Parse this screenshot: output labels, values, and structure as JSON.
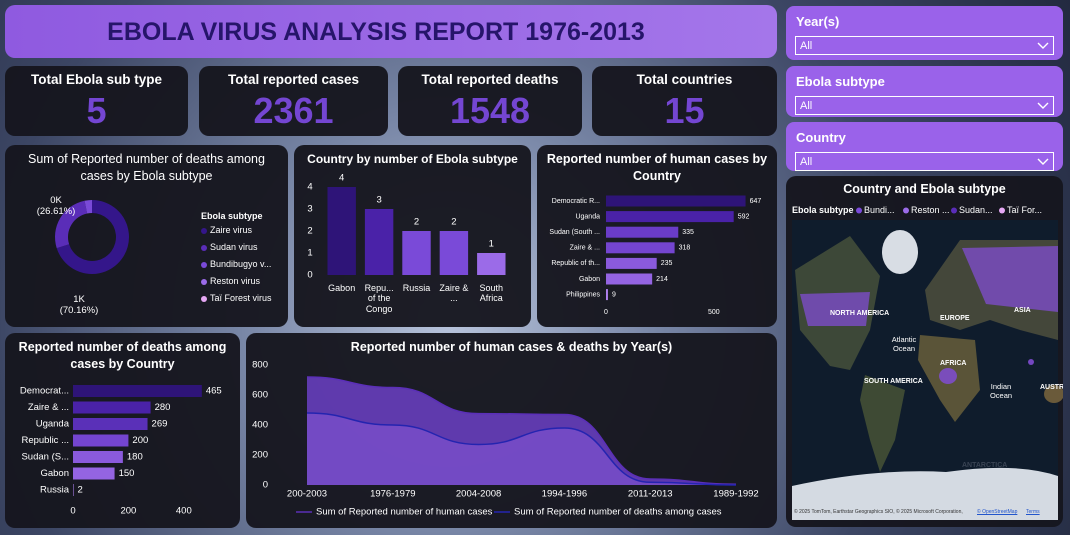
{
  "title": "EBOLA VIRUS ANALYSIS REPORT 1976-2013",
  "kpis": [
    {
      "label": "Total Ebola sub type",
      "value": 5
    },
    {
      "label": "Total reported cases",
      "value": 2361
    },
    {
      "label": "Total reported deaths",
      "value": 1548
    },
    {
      "label": "Total countries",
      "value": 15
    }
  ],
  "filters": [
    {
      "label": "Year(s)",
      "value": "All"
    },
    {
      "label": "Ebola subtype",
      "value": "All"
    },
    {
      "label": "Country",
      "value": "All"
    }
  ],
  "chart_data": [
    {
      "type": "donut",
      "title": "Sum of Reported number of deaths among cases by Ebola subtype",
      "legend_title": "Ebola subtype",
      "categories": [
        "Zaire virus",
        "Sudan virus",
        "Bundibugyo v...",
        "Reston virus",
        "Taï Forest virus"
      ],
      "values": [
        1086,
        412,
        50,
        0,
        0
      ],
      "value_labels": [
        "1K (70.16%)",
        "0K (26.61%)",
        null,
        null,
        null
      ],
      "colors": [
        "#34168a",
        "#5a2db8",
        "#7a4ad8",
        "#9b6be8",
        "#e6a8f4"
      ]
    },
    {
      "type": "column",
      "title": "Country by number of Ebola subtype",
      "categories": [
        "Gabon",
        "Repu... of the Congo",
        "Russia",
        "Zaire & ...",
        "South Africa"
      ],
      "values": [
        4,
        3,
        2,
        2,
        1
      ],
      "colors": [
        "#2e1478",
        "#4a22a8",
        "#7a4ad8",
        "#7a4ad8",
        "#9b6be8"
      ],
      "ylim": [
        0,
        4
      ],
      "yticks": [
        0,
        1,
        2,
        3,
        4
      ]
    },
    {
      "type": "hbar",
      "title": "Reported number of human cases by Country",
      "categories": [
        "Democratic R...",
        "Uganda",
        "Sudan (South ...",
        "Zaire & ...",
        "Republic of th...",
        "Gabon",
        "Philippines"
      ],
      "values": [
        647,
        592,
        335,
        318,
        235,
        214,
        9
      ],
      "colors": [
        "#2e1478",
        "#4a22a8",
        "#6a3cc8",
        "#7445d0",
        "#8a5adc",
        "#9464e2",
        "#b080f0"
      ],
      "xlim": [
        0,
        700
      ],
      "xticks": [
        0,
        500
      ]
    },
    {
      "type": "hbar",
      "title": "Reported number of deaths among cases by Country",
      "categories": [
        "Democrat...",
        "Zaire & ...",
        "Uganda",
        "Republic ...",
        "Sudan (S...",
        "Gabon",
        "Russia"
      ],
      "values": [
        465,
        280,
        269,
        200,
        180,
        150,
        2
      ],
      "colors": [
        "#2e1478",
        "#4a22a8",
        "#5a30b8",
        "#7445d0",
        "#8a5adc",
        "#9464e2",
        "#b080f0"
      ],
      "xlim": [
        0,
        480
      ],
      "xticks": [
        0,
        200,
        400
      ]
    },
    {
      "type": "area",
      "title": "Reported number of human cases & deaths by Year(s)",
      "categories": [
        "200-2003",
        "1976-1979",
        "2004-2008",
        "1994-1996",
        "2011-2013",
        "1989-1992"
      ],
      "series": [
        {
          "name": "Sum of Reported number of human cases",
          "color": "#5b2fb8",
          "values": [
            720,
            650,
            476,
            470,
            40,
            5
          ]
        },
        {
          "name": "Sum of Reported number of deaths among cases",
          "color": "#2424b0",
          "values": [
            480,
            400,
            270,
            380,
            18,
            0
          ]
        }
      ],
      "ylim": [
        0,
        800
      ],
      "yticks": [
        0,
        200,
        400,
        600,
        800
      ]
    }
  ],
  "map": {
    "title": "Country and Ebola subtype",
    "legend_title": "Ebola subtype",
    "legend": [
      {
        "name": "Bundi...",
        "color": "#7a4ad8"
      },
      {
        "name": "Reston ...",
        "color": "#9b6be8"
      },
      {
        "name": "Sudan...",
        "color": "#5a2db8"
      },
      {
        "name": "Taï For...",
        "color": "#e6a8f4"
      }
    ],
    "labels": [
      "NORTH AMERICA",
      "EUROPE",
      "ASIA",
      "Atlantic Ocean",
      "SOUTH AMERICA",
      "AFRICA",
      "Indian Ocean",
      "AUSTR",
      "ANTARCTICA"
    ],
    "attribution": "© 2025 TomTom, Earthstar Geographics SIO, © 2025 Microsoft Corporation,",
    "attribution_link": "© OpenStreetMap",
    "terms": "Terms"
  }
}
